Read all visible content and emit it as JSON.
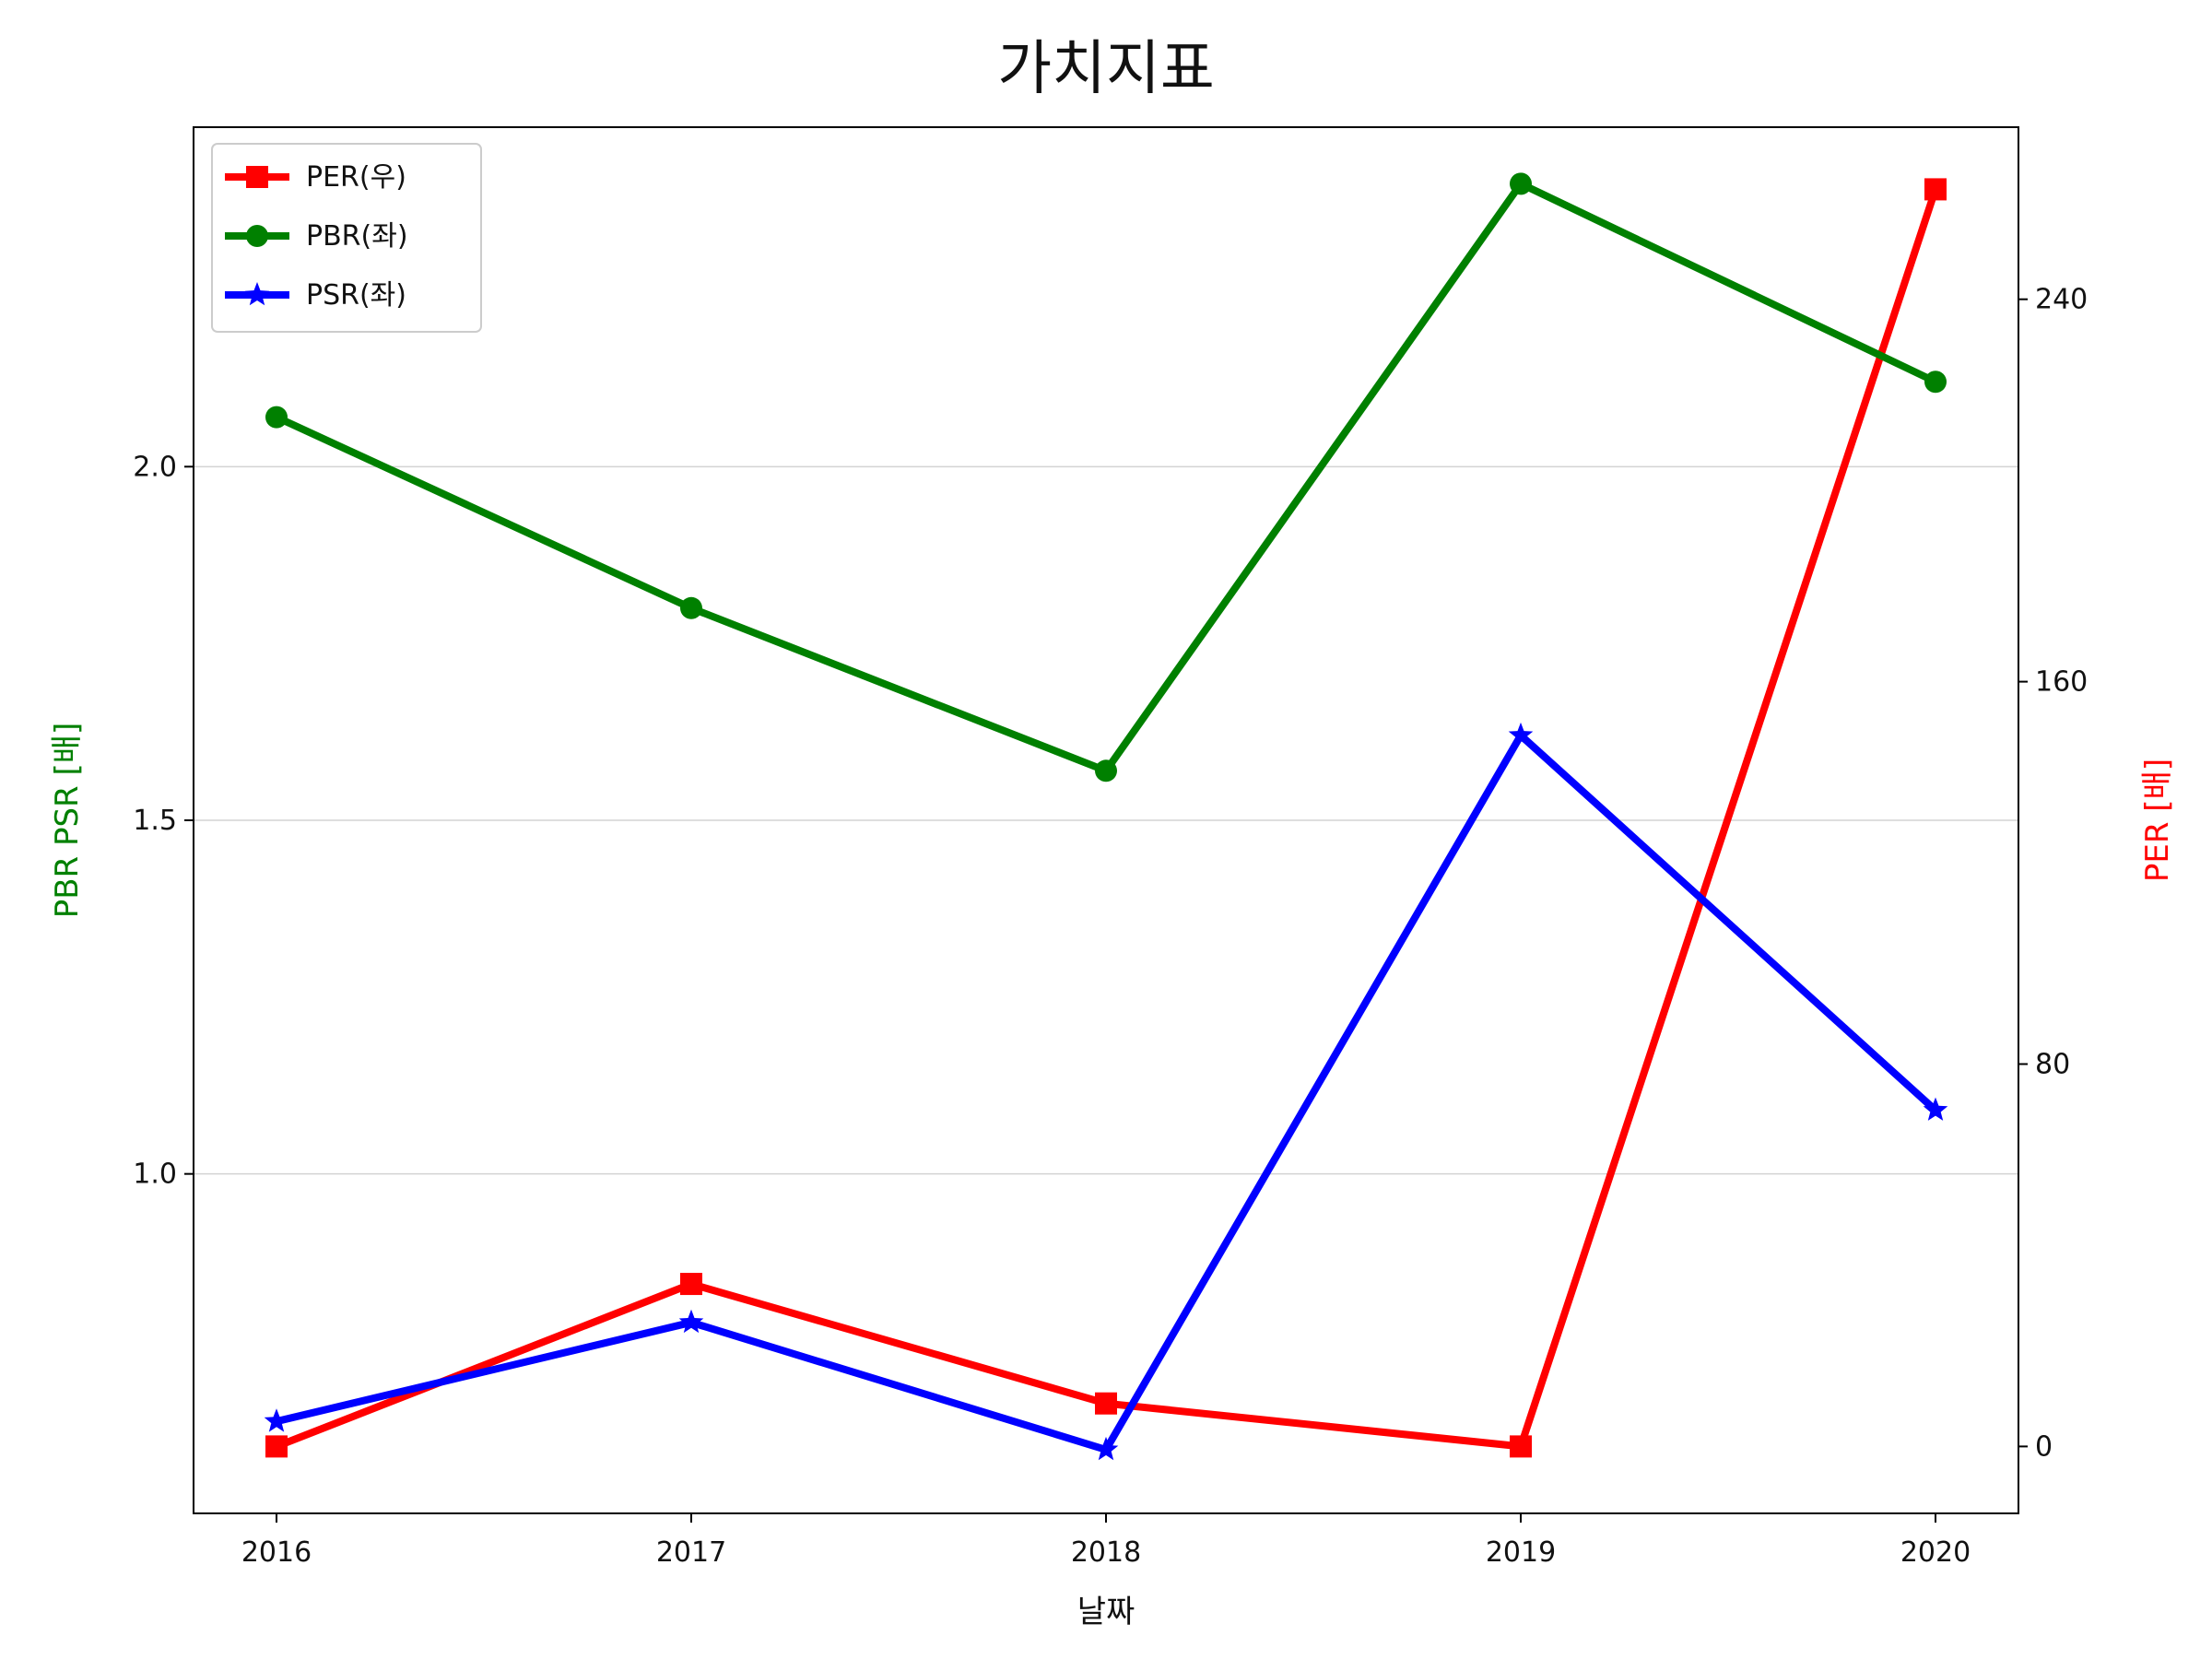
{
  "chart_data": {
    "type": "line",
    "title": "가치지표",
    "xlabel": "날짜",
    "ylabel_left": "PBR PSR [배]",
    "ylabel_right": "PER [배]",
    "categories": [
      "2016",
      "2017",
      "2018",
      "2019",
      "2020"
    ],
    "ylim_left": [
      0.52,
      2.48
    ],
    "ylim_right": [
      -14,
      276
    ],
    "yticks_left": [
      "1.0",
      "1.5",
      "2.0"
    ],
    "yticks_right": [
      "0",
      "80",
      "160",
      "240"
    ],
    "grid": "horizontal (left axis)",
    "legend_position": "top-left",
    "series": [
      {
        "name": "PER(우)",
        "axis": "right",
        "color": "#ff0000",
        "marker": "square",
        "values": [
          0,
          34,
          9,
          0,
          263
        ]
      },
      {
        "name": "PBR(좌)",
        "axis": "left",
        "color": "#008000",
        "marker": "circle",
        "values": [
          2.07,
          1.8,
          1.57,
          2.4,
          2.12
        ]
      },
      {
        "name": "PSR(좌)",
        "axis": "left",
        "color": "#0000ff",
        "marker": "star",
        "values": [
          0.65,
          0.79,
          0.61,
          1.62,
          1.09
        ]
      }
    ]
  }
}
